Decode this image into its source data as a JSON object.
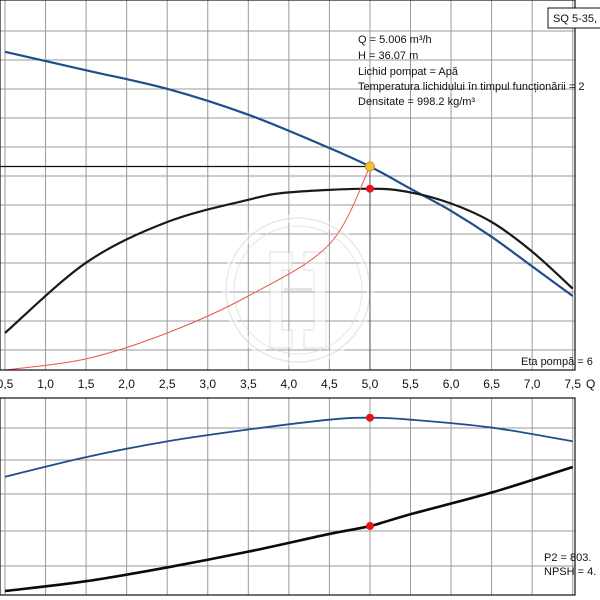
{
  "chart_data": [
    {
      "type": "line",
      "title": "SQ 5-35,",
      "x_axis_label": "Q",
      "x_ticks": [
        "0,5",
        "1,0",
        "1,5",
        "2,0",
        "2,5",
        "3,0",
        "3,5",
        "4,0",
        "4,5",
        "5,0",
        "5,5",
        "6,0",
        "6,5",
        "7,0",
        "7,5"
      ],
      "info_lines": [
        "Q = 5.006 m³/h",
        "H = 36.07 m",
        "Lichid pompat = Apă",
        "Temperatura lichidului în timpul funcționării = 2",
        "Densitate = 998.2 kg/m³"
      ],
      "footer_label": "Eta pompă = 6",
      "grid": true,
      "series": [
        {
          "color": "#1f4e8c",
          "x": [
            0.5,
            1.5,
            2.5,
            3.5,
            4.5,
            5.0,
            5.5,
            6.0,
            6.5,
            7.0,
            7.5
          ],
          "y": [
            86,
            81,
            76,
            69,
            60,
            55,
            49,
            43,
            36,
            28,
            20
          ]
        },
        {
          "color": "#1a1a1a",
          "x": [
            0.5,
            1.5,
            2.5,
            3.5,
            4.0,
            5.0,
            5.5,
            6.0,
            6.5,
            7.0,
            7.5
          ],
          "y": [
            10,
            29,
            40,
            46,
            48,
            49,
            48,
            45,
            40,
            32,
            22
          ]
        },
        {
          "color": "#e8584a",
          "x": [
            0.5,
            1.5,
            2.5,
            3.5,
            4.5,
            5.0
          ],
          "y": [
            0,
            3,
            10,
            20,
            34,
            55
          ]
        }
      ],
      "operating_point": {
        "x": 5.0,
        "y_h": 55,
        "y_eta": 49
      }
    },
    {
      "type": "line",
      "footer_labels": [
        "P2 = 803.",
        "NPSH = 4."
      ],
      "grid": true,
      "series": [
        {
          "color": "#1f4e8c",
          "x": [
            0.5,
            1.5,
            2.5,
            3.5,
            4.5,
            5.0,
            5.5,
            6.5,
            7.5
          ],
          "y": [
            60,
            70,
            78,
            84,
            89,
            90,
            89,
            85,
            78
          ]
        },
        {
          "color": "#0a0a0a",
          "x": [
            0.5,
            1.5,
            2.5,
            3.5,
            4.5,
            5.0,
            5.5,
            6.5,
            7.5
          ],
          "y": [
            2,
            7,
            14,
            22,
            31,
            35,
            41,
            52,
            65
          ]
        }
      ],
      "operating_point": {
        "x": 5.0,
        "y_top": 90,
        "y_bottom": 35
      }
    }
  ],
  "colors": {
    "operating_point_h": "#f2c230",
    "operating_point_marker": "#e8141b",
    "reference_line": "#111111"
  }
}
